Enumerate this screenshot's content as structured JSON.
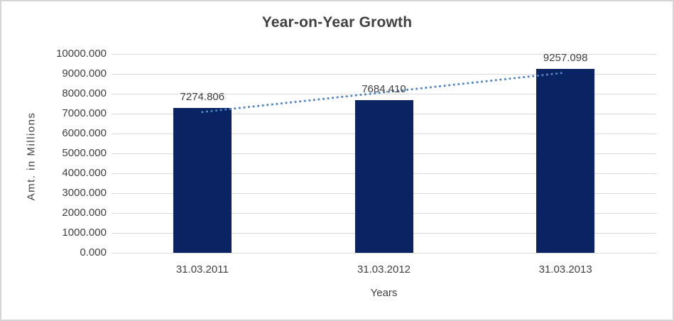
{
  "chart_data": {
    "type": "bar",
    "title": "Year-on-Year Growth",
    "xlabel": "Years",
    "ylabel": "Amt. in Millions",
    "categories": [
      "31.03.2011",
      "31.03.2012",
      "31.03.2013"
    ],
    "values": [
      7274.806,
      7684.41,
      9257.098
    ],
    "data_labels": [
      "7274.806",
      "7684.410",
      "9257.098"
    ],
    "ytick_labels_top_to_bottom": [
      "10000.000",
      "9000.000",
      "8000.000",
      "7000.000",
      "6000.000",
      "5000.000",
      "4000.000",
      "3000.000",
      "2000.000",
      "1000.000",
      "0.000"
    ],
    "ylim": [
      0,
      10000
    ],
    "ytick_step": 1000,
    "grid": true,
    "legend": "none",
    "trendline": {
      "kind": "linear",
      "style": "dotted",
      "color": "#4e85c4"
    },
    "colors": {
      "bar_fill": "#0a2463",
      "gridline": "#d9d9d9",
      "text": "#404040",
      "frame_border": "#d5d5d5",
      "background": "#ffffff"
    }
  }
}
